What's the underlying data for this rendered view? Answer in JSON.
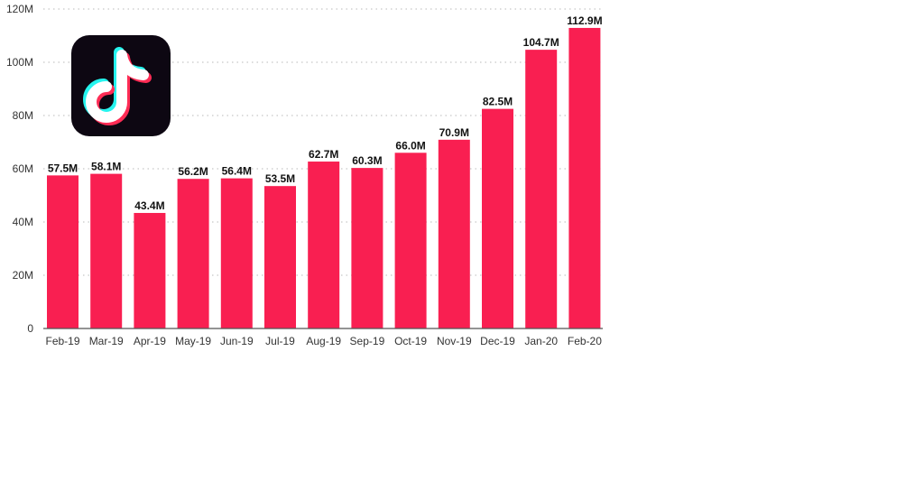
{
  "logo": {
    "name": "tiktok-logo",
    "icon": "tiktok-note-icon"
  },
  "chart_data": {
    "type": "bar",
    "title": "",
    "xlabel": "",
    "ylabel": "",
    "categories": [
      "Feb-19",
      "Mar-19",
      "Apr-19",
      "May-19",
      "Jun-19",
      "Jul-19",
      "Aug-19",
      "Sep-19",
      "Oct-19",
      "Nov-19",
      "Dec-19",
      "Jan-20",
      "Feb-20"
    ],
    "values": [
      57.5,
      58.1,
      43.4,
      56.2,
      56.4,
      53.5,
      62.7,
      60.3,
      66.0,
      70.9,
      82.5,
      104.7,
      112.9
    ],
    "value_labels": [
      "57.5M",
      "58.1M",
      "43.4M",
      "56.2M",
      "56.4M",
      "53.5M",
      "62.7M",
      "60.3M",
      "66.0M",
      "70.9M",
      "82.5M",
      "104.7M",
      "112.9M"
    ],
    "ylim": [
      0,
      120
    ],
    "yticks": [
      0,
      20,
      40,
      60,
      80,
      100,
      120
    ],
    "ytick_labels": [
      "0",
      "20M",
      "40M",
      "60M",
      "80M",
      "100M",
      "120M"
    ],
    "grid": true,
    "legend": "none",
    "colors": {
      "bar": "#f91f51",
      "grid": "#b8b8b8",
      "axis": "#555555"
    }
  }
}
